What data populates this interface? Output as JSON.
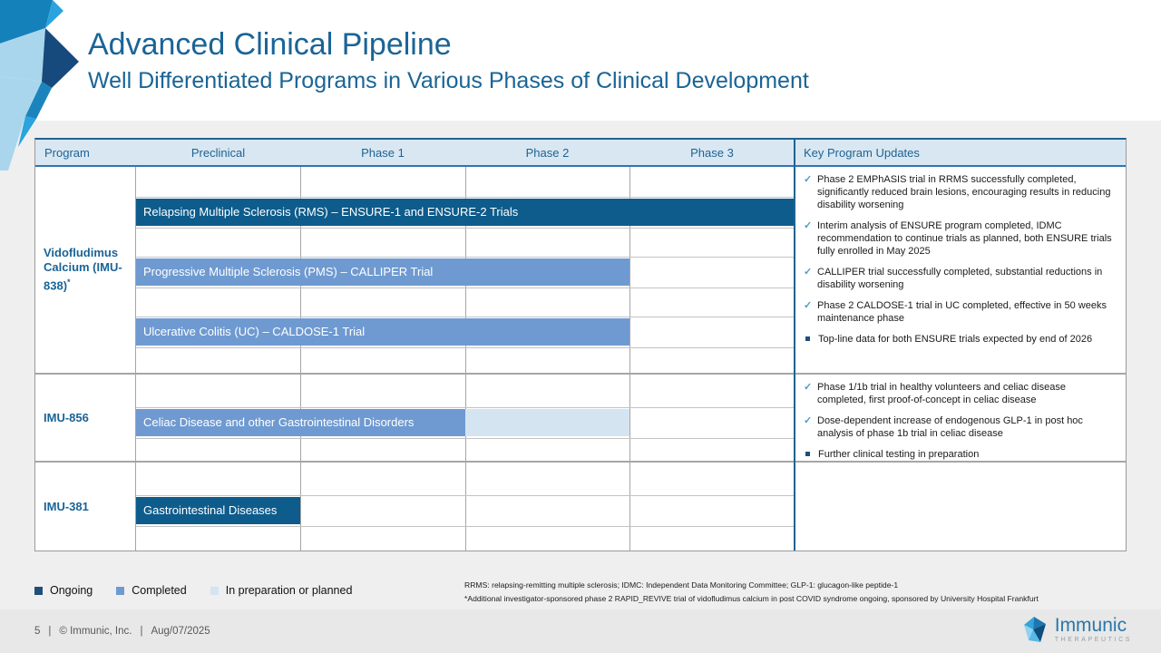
{
  "slide": {
    "title": "Advanced Clinical Pipeline",
    "subtitle": "Well Differentiated Programs in Various Phases of Clinical Development"
  },
  "status_colors": {
    "ongoing": "#0d5c8c",
    "completed": "#6f9ad1",
    "planned": "#d5e4f1",
    "ongoing_legend": "#1f4e79"
  },
  "table": {
    "headers": [
      "Program",
      "Preclinical",
      "Phase 1",
      "Phase 2",
      "Phase 3",
      "Key Program Updates"
    ],
    "rows": [
      {
        "program": "Vidofludimus Calcium (IMU-838)",
        "program_sup": "*",
        "bars": [
          {
            "label": "Relapsing Multiple Sclerosis (RMS) – ENSURE-1 and ENSURE-2 Trials",
            "segments": [
              {
                "status": "ongoing",
                "from": "preclinical",
                "to": "phase3"
              }
            ]
          },
          {
            "label": "Progressive Multiple Sclerosis (PMS) – CALLIPER Trial",
            "segments": [
              {
                "status": "completed",
                "from": "preclinical",
                "to": "phase2"
              }
            ]
          },
          {
            "label": "Ulcerative Colitis (UC) – CALDOSE-1 Trial",
            "segments": [
              {
                "status": "completed",
                "from": "preclinical",
                "to": "phase2"
              }
            ]
          }
        ],
        "updates": [
          {
            "bullet": "check",
            "text": "Phase 2 EMPhASIS trial in RRMS successfully completed, significantly reduced brain lesions, encouraging results in reducing disability worsening"
          },
          {
            "bullet": "check",
            "text": "Interim analysis of ENSURE program completed, IDMC recommendation to continue trials as planned, both ENSURE trials fully enrolled in May 2025"
          },
          {
            "bullet": "check",
            "text": "CALLIPER trial successfully completed, substantial reductions in disability worsening"
          },
          {
            "bullet": "check",
            "text": "Phase 2 CALDOSE-1 trial in UC completed, effective in 50 weeks maintenance phase"
          },
          {
            "bullet": "square",
            "text": "Top-line data for both ENSURE trials expected by end of 2026"
          }
        ]
      },
      {
        "program": "IMU-856",
        "program_sup": "",
        "bars": [
          {
            "label": "Celiac Disease and other Gastrointestinal Disorders",
            "segments": [
              {
                "status": "completed",
                "from": "preclinical",
                "to": "phase1"
              },
              {
                "status": "planned",
                "from": "phase2",
                "to": "phase2"
              }
            ]
          }
        ],
        "updates": [
          {
            "bullet": "check",
            "text": "Phase 1/1b trial in healthy volunteers and celiac disease completed, first proof-of-concept in celiac disease"
          },
          {
            "bullet": "check",
            "text": "Dose-dependent increase of endogenous GLP-1 in post hoc analysis of phase 1b trial in celiac disease"
          },
          {
            "bullet": "square",
            "text": "Further clinical testing in preparation"
          }
        ]
      },
      {
        "program": "IMU-381",
        "program_sup": "",
        "bars": [
          {
            "label": "Gastrointestinal Diseases",
            "segments": [
              {
                "status": "ongoing",
                "from": "preclinical",
                "to": "preclinical"
              }
            ]
          }
        ],
        "updates": []
      }
    ]
  },
  "legend": [
    {
      "label": "Ongoing"
    },
    {
      "label": "Completed"
    },
    {
      "label": "In preparation or planned"
    }
  ],
  "footnotes": [
    "RRMS: relapsing-remitting multiple sclerosis; IDMC: Independent Data Monitoring Committee; GLP-1: glucagon-like peptide-1",
    "*Additional investigator-sponsored phase 2 RAPID_REVIVE trial of vidofludimus calcium in post COVID syndrome ongoing, sponsored by University Hospital Frankfurt"
  ],
  "footer": {
    "page_number": "5",
    "separator": "|",
    "copyright": "© Immunic, Inc.",
    "date": "Aug/07/2025",
    "logo_name": "Immunic",
    "logo_tagline": "THERAPEUTICS"
  }
}
